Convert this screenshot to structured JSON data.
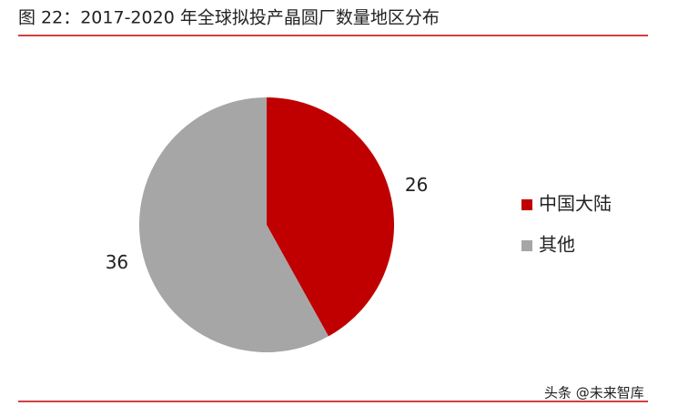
{
  "chart_data": {
    "type": "pie",
    "title": "图 22：2017-2020 年全球拟投产晶圆厂数量地区分布",
    "categories": [
      "中国大陆",
      "其他"
    ],
    "values": [
      26,
      36
    ],
    "colors": [
      "#c00000",
      "#a6a6a6"
    ],
    "legend": "right",
    "watermark": "头条 @未来智库"
  }
}
